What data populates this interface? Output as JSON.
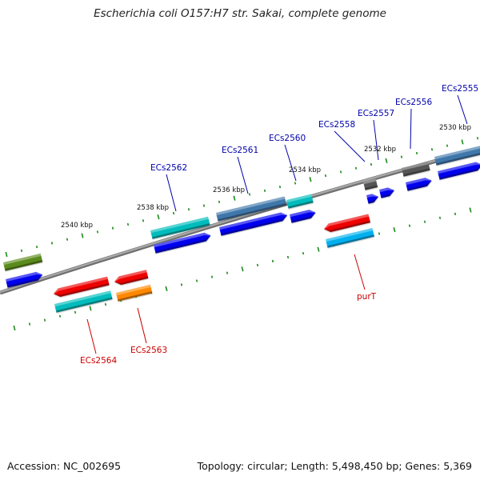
{
  "title": "Escherichia coli O157:H7 str. Sakai, complete genome",
  "footer": {
    "accession": "Accession: NC_002695",
    "topology": "Topology: circular; Length: 5,498,450 bp; Genes: 5,369"
  },
  "colors": {
    "backbone": "#8a8a8a",
    "tick": "#1d8a1d",
    "label_forward": "#0000aa",
    "label_reverse": "#cc0000",
    "gene_blue": "#0000ee",
    "gene_cyan": "#00bcbc",
    "gene_red": "#ee0000",
    "gene_steel": "#3f77aa",
    "gene_gray": "#555555",
    "gene_olive": "#5a8a1a",
    "gene_orange": "#ff8800",
    "gene_skyblue": "#00b0ee"
  },
  "kbp_labels": [
    "2540 kbp",
    "2538 kbp",
    "2536 kbp",
    "2534 kbp",
    "2532 kbp",
    "2530 kbp"
  ],
  "gene_labels": {
    "forward": [
      "ECs2555",
      "ECs2556",
      "ECs2557",
      "ECs2558",
      "ECs2560",
      "ECs2561",
      "ECs2562"
    ],
    "reverse": [
      "purT",
      "ECs2563",
      "ECs2564"
    ]
  }
}
